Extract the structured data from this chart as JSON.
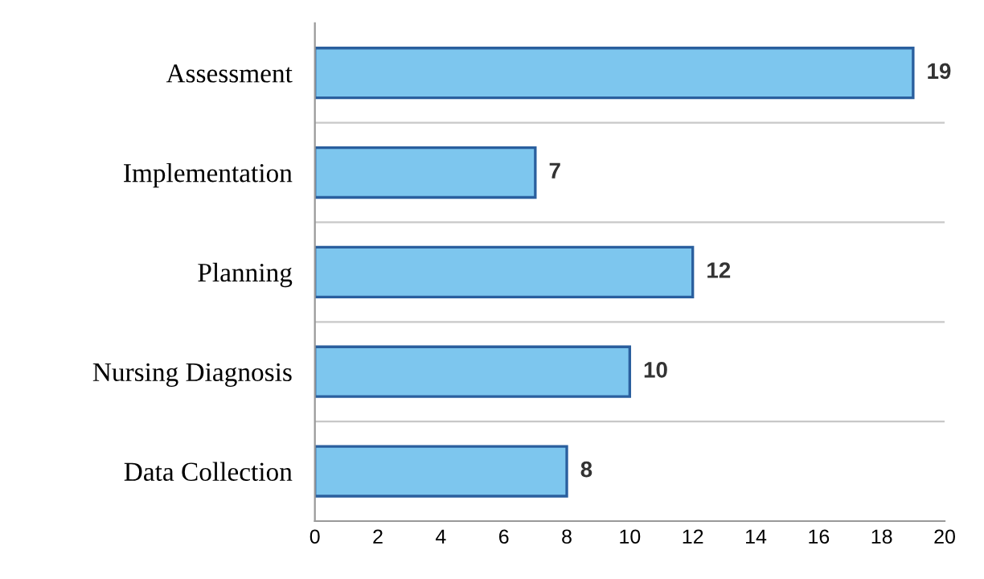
{
  "chart_data": {
    "type": "bar",
    "orientation": "horizontal",
    "categories": [
      "Assessment",
      "Implementation",
      "Planning",
      "Nursing Diagnosis",
      "Data Collection"
    ],
    "values": [
      19,
      7,
      12,
      10,
      8
    ],
    "color": "#7dc6ee",
    "xlim": [
      0,
      20
    ],
    "xticks": [
      0,
      2,
      4,
      6,
      8,
      10,
      12,
      14,
      16,
      18,
      20
    ],
    "data_labels": true,
    "grid": false
  }
}
